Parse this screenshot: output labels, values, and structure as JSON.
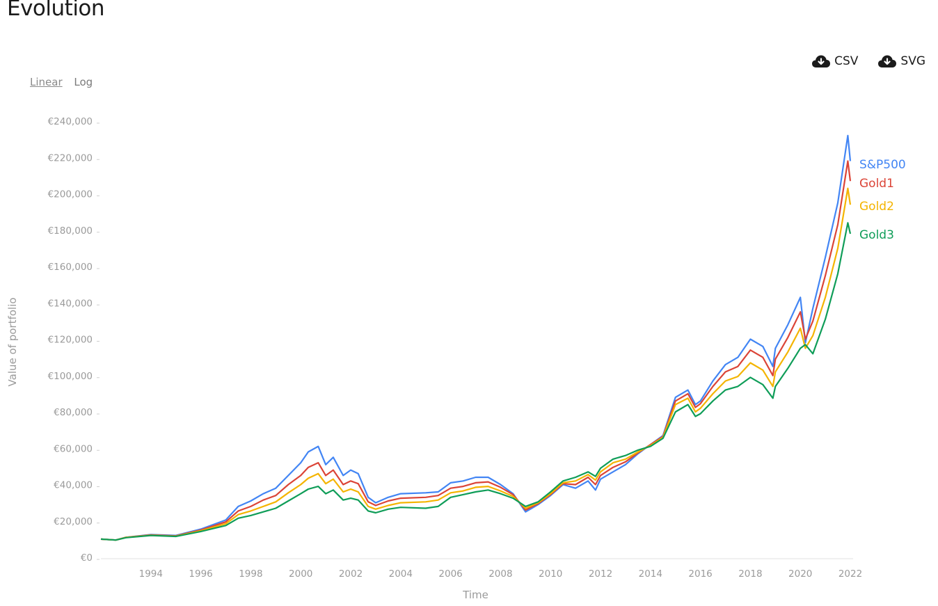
{
  "page": {
    "title": "Evolution"
  },
  "scale_toggle": {
    "linear_label": "Linear",
    "log_label": "Log",
    "active": "linear"
  },
  "downloads": {
    "csv_label": "CSV",
    "svg_label": "SVG",
    "icon": "cloud-download-icon"
  },
  "chart_data": {
    "type": "line",
    "xlabel": "Time",
    "ylabel": "Value of portfolio",
    "xlim": [
      1992.0,
      2022.0
    ],
    "ylim": [
      0,
      240000
    ],
    "x_ticks": [
      1994,
      1996,
      1998,
      2000,
      2002,
      2004,
      2006,
      2008,
      2010,
      2012,
      2014,
      2016,
      2018,
      2020,
      2022
    ],
    "x_tick_labels": [
      "1994",
      "1996",
      "1998",
      "2000",
      "2002",
      "2004",
      "2006",
      "2008",
      "2010",
      "2012",
      "2014",
      "2016",
      "2018",
      "2020",
      "2022"
    ],
    "y_ticks": [
      0,
      20000,
      40000,
      60000,
      80000,
      100000,
      120000,
      140000,
      160000,
      180000,
      200000,
      220000,
      240000
    ],
    "y_tick_labels": [
      "€0",
      "€20,000",
      "€40,000",
      "€60,000",
      "€80,000",
      "€100,000",
      "€120,000",
      "€140,000",
      "€160,000",
      "€180,000",
      "€200,000",
      "€220,000",
      "€240,000"
    ],
    "grid": false,
    "legend": "end-of-line labels",
    "series": [
      {
        "name": "S&P500",
        "color": "#4285f4",
        "points": [
          [
            1992.0,
            10000
          ],
          [
            1992.6,
            9500
          ],
          [
            1993.0,
            11000
          ],
          [
            1994.0,
            12500
          ],
          [
            1995.0,
            12000
          ],
          [
            1996.0,
            15500
          ],
          [
            1997.0,
            20500
          ],
          [
            1997.5,
            28000
          ],
          [
            1998.0,
            31000
          ],
          [
            1998.5,
            35000
          ],
          [
            1999.0,
            38000
          ],
          [
            1999.5,
            45000
          ],
          [
            2000.0,
            52000
          ],
          [
            2000.3,
            58000
          ],
          [
            2000.7,
            61000
          ],
          [
            2001.0,
            51000
          ],
          [
            2001.3,
            55000
          ],
          [
            2001.7,
            45000
          ],
          [
            2002.0,
            48000
          ],
          [
            2002.3,
            46000
          ],
          [
            2002.7,
            33000
          ],
          [
            2003.0,
            30000
          ],
          [
            2003.5,
            33000
          ],
          [
            2004.0,
            35000
          ],
          [
            2005.0,
            35500
          ],
          [
            2005.5,
            36000
          ],
          [
            2006.0,
            41000
          ],
          [
            2006.5,
            42000
          ],
          [
            2007.0,
            44000
          ],
          [
            2007.5,
            44000
          ],
          [
            2008.0,
            40000
          ],
          [
            2008.5,
            35000
          ],
          [
            2009.0,
            25000
          ],
          [
            2009.5,
            29000
          ],
          [
            2010.0,
            34000
          ],
          [
            2010.5,
            40000
          ],
          [
            2011.0,
            38000
          ],
          [
            2011.5,
            42000
          ],
          [
            2011.8,
            37000
          ],
          [
            2012.0,
            43000
          ],
          [
            2012.5,
            47000
          ],
          [
            2013.0,
            51000
          ],
          [
            2013.5,
            57000
          ],
          [
            2014.0,
            62000
          ],
          [
            2014.5,
            67000
          ],
          [
            2015.0,
            88000
          ],
          [
            2015.5,
            92000
          ],
          [
            2015.8,
            84000
          ],
          [
            2016.0,
            86000
          ],
          [
            2016.5,
            97000
          ],
          [
            2017.0,
            106000
          ],
          [
            2017.5,
            110000
          ],
          [
            2018.0,
            120000
          ],
          [
            2018.5,
            116000
          ],
          [
            2018.9,
            105000
          ],
          [
            2019.0,
            115000
          ],
          [
            2019.5,
            128000
          ],
          [
            2020.0,
            143000
          ],
          [
            2020.2,
            118000
          ],
          [
            2020.5,
            137000
          ],
          [
            2021.0,
            165000
          ],
          [
            2021.5,
            195000
          ],
          [
            2021.9,
            232000
          ],
          [
            2022.0,
            218000
          ]
        ]
      },
      {
        "name": "Gold1",
        "color": "#db4437",
        "points": [
          [
            1992.0,
            10000
          ],
          [
            1992.6,
            9500
          ],
          [
            1993.0,
            11000
          ],
          [
            1994.0,
            12300
          ],
          [
            1995.0,
            11800
          ],
          [
            1996.0,
            15000
          ],
          [
            1997.0,
            19500
          ],
          [
            1997.5,
            25500
          ],
          [
            1998.0,
            28000
          ],
          [
            1998.5,
            31500
          ],
          [
            1999.0,
            34000
          ],
          [
            1999.5,
            40000
          ],
          [
            2000.0,
            45000
          ],
          [
            2000.3,
            49500
          ],
          [
            2000.7,
            52000
          ],
          [
            2001.0,
            45000
          ],
          [
            2001.3,
            48000
          ],
          [
            2001.7,
            40000
          ],
          [
            2002.0,
            42000
          ],
          [
            2002.3,
            40500
          ],
          [
            2002.7,
            30500
          ],
          [
            2003.0,
            28500
          ],
          [
            2003.5,
            31000
          ],
          [
            2004.0,
            32500
          ],
          [
            2005.0,
            33000
          ],
          [
            2005.5,
            34000
          ],
          [
            2006.0,
            38000
          ],
          [
            2006.5,
            39000
          ],
          [
            2007.0,
            41000
          ],
          [
            2007.5,
            41500
          ],
          [
            2008.0,
            38500
          ],
          [
            2008.5,
            34500
          ],
          [
            2009.0,
            26000
          ],
          [
            2009.5,
            29500
          ],
          [
            2010.0,
            34500
          ],
          [
            2010.5,
            40500
          ],
          [
            2011.0,
            40000
          ],
          [
            2011.5,
            44000
          ],
          [
            2011.8,
            40000
          ],
          [
            2012.0,
            45000
          ],
          [
            2012.5,
            49500
          ],
          [
            2013.0,
            52500
          ],
          [
            2013.5,
            57500
          ],
          [
            2014.0,
            62000
          ],
          [
            2014.5,
            66500
          ],
          [
            2015.0,
            86000
          ],
          [
            2015.5,
            90000
          ],
          [
            2015.8,
            82500
          ],
          [
            2016.0,
            84500
          ],
          [
            2016.5,
            94000
          ],
          [
            2017.0,
            102000
          ],
          [
            2017.5,
            105000
          ],
          [
            2018.0,
            114000
          ],
          [
            2018.5,
            110000
          ],
          [
            2018.9,
            100000
          ],
          [
            2019.0,
            109000
          ],
          [
            2019.5,
            121000
          ],
          [
            2020.0,
            135000
          ],
          [
            2020.2,
            120000
          ],
          [
            2020.5,
            130000
          ],
          [
            2021.0,
            155000
          ],
          [
            2021.5,
            183000
          ],
          [
            2021.9,
            218000
          ],
          [
            2022.0,
            207000
          ]
        ]
      },
      {
        "name": "Gold2",
        "color": "#f4b400",
        "points": [
          [
            1992.0,
            10000
          ],
          [
            1992.6,
            9500
          ],
          [
            1993.0,
            10900
          ],
          [
            1994.0,
            12100
          ],
          [
            1995.0,
            11600
          ],
          [
            1996.0,
            14600
          ],
          [
            1997.0,
            18500
          ],
          [
            1997.5,
            23500
          ],
          [
            1998.0,
            25500
          ],
          [
            1998.5,
            28000
          ],
          [
            1999.0,
            30500
          ],
          [
            1999.5,
            35500
          ],
          [
            2000.0,
            40000
          ],
          [
            2000.3,
            43500
          ],
          [
            2000.7,
            46000
          ],
          [
            2001.0,
            40500
          ],
          [
            2001.3,
            43000
          ],
          [
            2001.7,
            36000
          ],
          [
            2002.0,
            37500
          ],
          [
            2002.3,
            36000
          ],
          [
            2002.7,
            28000
          ],
          [
            2003.0,
            26500
          ],
          [
            2003.5,
            28500
          ],
          [
            2004.0,
            30000
          ],
          [
            2005.0,
            30500
          ],
          [
            2005.5,
            31500
          ],
          [
            2006.0,
            35500
          ],
          [
            2006.5,
            36500
          ],
          [
            2007.0,
            38500
          ],
          [
            2007.5,
            39000
          ],
          [
            2008.0,
            36500
          ],
          [
            2008.5,
            33500
          ],
          [
            2009.0,
            27000
          ],
          [
            2009.5,
            30000
          ],
          [
            2010.0,
            35000
          ],
          [
            2010.5,
            41000
          ],
          [
            2011.0,
            42000
          ],
          [
            2011.5,
            45500
          ],
          [
            2011.8,
            42500
          ],
          [
            2012.0,
            47000
          ],
          [
            2012.5,
            52000
          ],
          [
            2013.0,
            54000
          ],
          [
            2013.5,
            58000
          ],
          [
            2014.0,
            61500
          ],
          [
            2014.5,
            66000
          ],
          [
            2015.0,
            84000
          ],
          [
            2015.5,
            87500
          ],
          [
            2015.8,
            80000
          ],
          [
            2016.0,
            82000
          ],
          [
            2016.5,
            90000
          ],
          [
            2017.0,
            97000
          ],
          [
            2017.5,
            99500
          ],
          [
            2018.0,
            107000
          ],
          [
            2018.5,
            103000
          ],
          [
            2018.9,
            94000
          ],
          [
            2019.0,
            102000
          ],
          [
            2019.5,
            113000
          ],
          [
            2020.0,
            126000
          ],
          [
            2020.2,
            115000
          ],
          [
            2020.5,
            122000
          ],
          [
            2021.0,
            143000
          ],
          [
            2021.5,
            170000
          ],
          [
            2021.9,
            203000
          ],
          [
            2022.0,
            194000
          ]
        ]
      },
      {
        "name": "Gold3",
        "color": "#0f9d58",
        "points": [
          [
            1992.0,
            10000
          ],
          [
            1992.6,
            9500
          ],
          [
            1993.0,
            10800
          ],
          [
            1994.0,
            12000
          ],
          [
            1995.0,
            11500
          ],
          [
            1996.0,
            14200
          ],
          [
            1997.0,
            17500
          ],
          [
            1997.5,
            21500
          ],
          [
            1998.0,
            23000
          ],
          [
            1998.5,
            25000
          ],
          [
            1999.0,
            27000
          ],
          [
            1999.5,
            31000
          ],
          [
            2000.0,
            35000
          ],
          [
            2000.3,
            37500
          ],
          [
            2000.7,
            39000
          ],
          [
            2001.0,
            35000
          ],
          [
            2001.3,
            37000
          ],
          [
            2001.7,
            31500
          ],
          [
            2002.0,
            32500
          ],
          [
            2002.3,
            31500
          ],
          [
            2002.7,
            25500
          ],
          [
            2003.0,
            24500
          ],
          [
            2003.5,
            26500
          ],
          [
            2004.0,
            27500
          ],
          [
            2005.0,
            27000
          ],
          [
            2005.5,
            28000
          ],
          [
            2006.0,
            33000
          ],
          [
            2006.5,
            34500
          ],
          [
            2007.0,
            36000
          ],
          [
            2007.5,
            37000
          ],
          [
            2008.0,
            35000
          ],
          [
            2008.5,
            32500
          ],
          [
            2009.0,
            28000
          ],
          [
            2009.5,
            30500
          ],
          [
            2010.0,
            36000
          ],
          [
            2010.5,
            42000
          ],
          [
            2011.0,
            44000
          ],
          [
            2011.5,
            47000
          ],
          [
            2011.8,
            44500
          ],
          [
            2012.0,
            49000
          ],
          [
            2012.5,
            54000
          ],
          [
            2013.0,
            56000
          ],
          [
            2013.5,
            59000
          ],
          [
            2014.0,
            61000
          ],
          [
            2014.5,
            65500
          ],
          [
            2015.0,
            80000
          ],
          [
            2015.5,
            84000
          ],
          [
            2015.8,
            77500
          ],
          [
            2016.0,
            79000
          ],
          [
            2016.5,
            86000
          ],
          [
            2017.0,
            92000
          ],
          [
            2017.5,
            94000
          ],
          [
            2018.0,
            99000
          ],
          [
            2018.5,
            95000
          ],
          [
            2018.9,
            87500
          ],
          [
            2019.0,
            94000
          ],
          [
            2019.5,
            104000
          ],
          [
            2020.0,
            115000
          ],
          [
            2020.2,
            117000
          ],
          [
            2020.5,
            112000
          ],
          [
            2021.0,
            131000
          ],
          [
            2021.5,
            156000
          ],
          [
            2021.9,
            184000
          ],
          [
            2022.0,
            178000
          ]
        ]
      }
    ]
  }
}
